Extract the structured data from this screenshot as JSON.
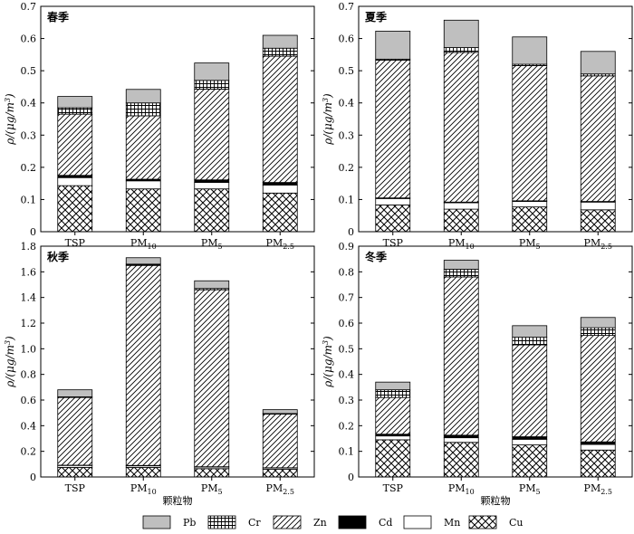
{
  "chart_data": [
    {
      "type": "bar",
      "stacked": true,
      "title": "春季",
      "xlabel": "",
      "ylabel": "ρ/(μg/m3)",
      "ylim": [
        0,
        0.7
      ],
      "yticks": [
        "0",
        "0.1",
        "0.2",
        "0.3",
        "0.4",
        "0.5",
        "0.6",
        "0.7"
      ],
      "categories": [
        "TSP",
        "PM10",
        "PM5",
        "PM2.5"
      ],
      "series": [
        {
          "name": "Cu",
          "values": [
            0.143,
            0.133,
            0.133,
            0.12
          ]
        },
        {
          "name": "Mn",
          "values": [
            0.025,
            0.025,
            0.02,
            0.025
          ]
        },
        {
          "name": "Cd",
          "values": [
            0.007,
            0.005,
            0.008,
            0.008
          ]
        },
        {
          "name": "Zn",
          "values": [
            0.19,
            0.197,
            0.282,
            0.392
          ]
        },
        {
          "name": "Cr",
          "values": [
            0.02,
            0.04,
            0.027,
            0.025
          ]
        },
        {
          "name": "Pb",
          "values": [
            0.035,
            0.042,
            0.054,
            0.04
          ]
        }
      ]
    },
    {
      "type": "bar",
      "stacked": true,
      "title": "夏季",
      "xlabel": "",
      "ylabel": "ρ/(μg/m3)",
      "ylim": [
        0,
        0.7
      ],
      "yticks": [
        "0",
        "0.1",
        "0.2",
        "0.3",
        "0.4",
        "0.5",
        "0.6",
        "0.7"
      ],
      "categories": [
        "TSP",
        "PM10",
        "PM5",
        "PM2.5"
      ],
      "series": [
        {
          "name": "Cu",
          "values": [
            0.083,
            0.07,
            0.077,
            0.068
          ]
        },
        {
          "name": "Mn",
          "values": [
            0.02,
            0.02,
            0.017,
            0.024
          ]
        },
        {
          "name": "Cd",
          "values": [
            0.002,
            0.002,
            0.002,
            0.002
          ]
        },
        {
          "name": "Zn",
          "values": [
            0.428,
            0.465,
            0.42,
            0.39
          ]
        },
        {
          "name": "Cr",
          "values": [
            0.003,
            0.015,
            0.004,
            0.006
          ]
        },
        {
          "name": "Pb",
          "values": [
            0.087,
            0.085,
            0.085,
            0.07
          ]
        }
      ]
    },
    {
      "type": "bar",
      "stacked": true,
      "title": "秋季",
      "xlabel": "颗粒物",
      "ylabel": "ρ/(μg/m3)",
      "ylim": [
        0,
        1.8
      ],
      "yticks": [
        "0",
        "0.2",
        "0.4",
        "0.6",
        "0.8",
        "1.0",
        "1.2",
        "1.4",
        "1.6",
        "1.8"
      ],
      "categories": [
        "TSP",
        "PM10",
        "PM5",
        "PM2.5"
      ],
      "series": [
        {
          "name": "Cu",
          "values": [
            0.075,
            0.075,
            0.065,
            0.06
          ]
        },
        {
          "name": "Mn",
          "values": [
            0.015,
            0.012,
            0.012,
            0.01
          ]
        },
        {
          "name": "Cd",
          "values": [
            0.002,
            0.003,
            0.003,
            0.002
          ]
        },
        {
          "name": "Zn",
          "values": [
            0.528,
            1.56,
            1.38,
            0.418
          ]
        },
        {
          "name": "Cr",
          "values": [
            0.005,
            0.01,
            0.01,
            0.005
          ]
        },
        {
          "name": "Pb",
          "values": [
            0.055,
            0.05,
            0.06,
            0.03
          ]
        }
      ]
    },
    {
      "type": "bar",
      "stacked": true,
      "title": "冬季",
      "xlabel": "颗粒物",
      "ylabel": "ρ/(μg/m3)",
      "ylim": [
        0,
        0.9
      ],
      "yticks": [
        "0",
        "0.1",
        "0.2",
        "0.3",
        "0.4",
        "0.5",
        "0.6",
        "0.7",
        "0.8",
        "0.9"
      ],
      "categories": [
        "TSP",
        "PM10",
        "PM5",
        "PM2.5"
      ],
      "series": [
        {
          "name": "Cu",
          "values": [
            0.145,
            0.135,
            0.125,
            0.105
          ]
        },
        {
          "name": "Mn",
          "values": [
            0.015,
            0.018,
            0.022,
            0.022
          ]
        },
        {
          "name": "Cd",
          "values": [
            0.007,
            0.01,
            0.01,
            0.01
          ]
        },
        {
          "name": "Zn",
          "values": [
            0.143,
            0.617,
            0.358,
            0.415
          ]
        },
        {
          "name": "Cr",
          "values": [
            0.03,
            0.03,
            0.03,
            0.03
          ]
        },
        {
          "name": "Pb",
          "values": [
            0.03,
            0.035,
            0.045,
            0.04
          ]
        }
      ]
    }
  ],
  "legend": {
    "items": [
      {
        "name": "Pb",
        "pattern": "gray"
      },
      {
        "name": "Cr",
        "pattern": "grid"
      },
      {
        "name": "Zn",
        "pattern": "diagonal"
      },
      {
        "name": "Cd",
        "pattern": "black"
      },
      {
        "name": "Mn",
        "pattern": "white"
      },
      {
        "name": "Cu",
        "pattern": "crosshatch"
      }
    ],
    "placement": "bottom"
  },
  "colors": {
    "Pb": "#bfbfbf",
    "Cd": "#000000",
    "Mn": "#ffffff",
    "axis": "#000000"
  }
}
